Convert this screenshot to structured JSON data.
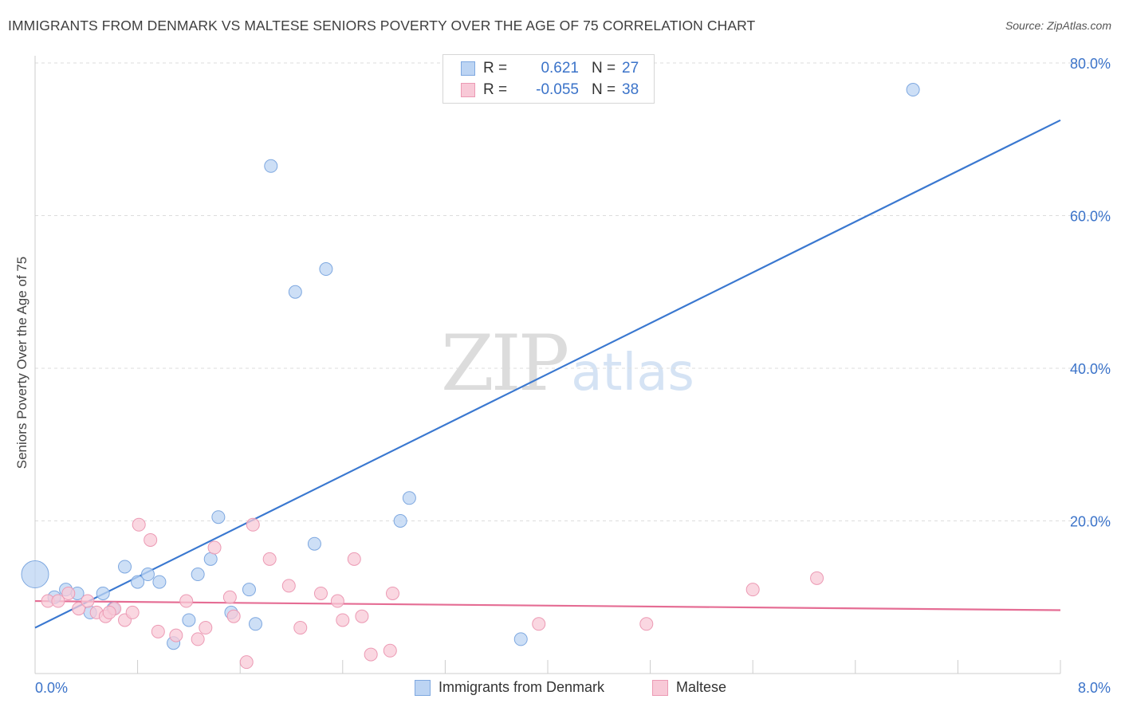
{
  "title": "IMMIGRANTS FROM DENMARK VS MALTESE SENIORS POVERTY OVER THE AGE OF 75 CORRELATION CHART",
  "source": "Source: ZipAtlas.com",
  "watermark": {
    "zip": "ZIP",
    "atlas": "atlas"
  },
  "colors": {
    "blue_fill": "#bcd4f3",
    "blue_stroke": "#7ea8e0",
    "blue_line": "#3a78d0",
    "pink_fill": "#f8c9d7",
    "pink_stroke": "#ec9ab4",
    "pink_line": "#e56d94",
    "grid": "#dddddd",
    "tick_label": "#3b73c9"
  },
  "legend": {
    "r_label": "R =",
    "n_label": "N =",
    "rows": [
      {
        "r": "0.621",
        "n": "27"
      },
      {
        "r": "-0.055",
        "n": "38"
      }
    ]
  },
  "chart_data": {
    "type": "scatter",
    "title": "IMMIGRANTS FROM DENMARK VS MALTESE SENIORS POVERTY OVER THE AGE OF 75 CORRELATION CHART",
    "xlabel": "",
    "ylabel": "Seniors Poverty Over the Age of 75",
    "xlim": [
      0,
      8
    ],
    "ylim": [
      0,
      82
    ],
    "x_tick_labels": [
      "0.0%",
      "8.0%"
    ],
    "y_ticks": [
      20,
      40,
      60,
      80
    ],
    "y_tick_labels": [
      "20.0%",
      "40.0%",
      "60.0%",
      "80.0%"
    ],
    "grid": true,
    "series": [
      {
        "name": "Immigrants from Denmark",
        "color": "#bcd4f3",
        "points": [
          [
            0.0,
            13.0
          ],
          [
            0.15,
            10.0
          ],
          [
            0.24,
            11.0
          ],
          [
            0.33,
            10.5
          ],
          [
            0.43,
            8.0
          ],
          [
            0.53,
            10.5
          ],
          [
            0.61,
            8.5
          ],
          [
            0.7,
            14.0
          ],
          [
            0.8,
            12.0
          ],
          [
            0.88,
            13.0
          ],
          [
            0.97,
            12.0
          ],
          [
            1.08,
            4.0
          ],
          [
            1.2,
            7.0
          ],
          [
            1.27,
            13.0
          ],
          [
            1.37,
            15.0
          ],
          [
            1.43,
            20.5
          ],
          [
            1.53,
            8.0
          ],
          [
            1.67,
            11.0
          ],
          [
            1.72,
            6.5
          ],
          [
            1.84,
            66.5
          ],
          [
            2.03,
            50.0
          ],
          [
            2.18,
            17.0
          ],
          [
            2.27,
            53.0
          ],
          [
            2.85,
            20.0
          ],
          [
            2.92,
            23.0
          ],
          [
            3.79,
            4.5
          ],
          [
            6.85,
            76.5
          ]
        ],
        "trend": {
          "x": [
            0.0,
            8.0
          ],
          "y": [
            6.0,
            72.5
          ]
        }
      },
      {
        "name": "Maltese",
        "color": "#f8c9d7",
        "points": [
          [
            0.1,
            9.5
          ],
          [
            0.18,
            9.5
          ],
          [
            0.26,
            10.5
          ],
          [
            0.34,
            8.5
          ],
          [
            0.41,
            9.5
          ],
          [
            0.48,
            8.0
          ],
          [
            0.55,
            7.5
          ],
          [
            0.62,
            8.5
          ],
          [
            0.7,
            7.0
          ],
          [
            0.76,
            8.0
          ],
          [
            0.81,
            19.5
          ],
          [
            0.9,
            17.5
          ],
          [
            0.96,
            5.5
          ],
          [
            1.1,
            5.0
          ],
          [
            1.18,
            9.5
          ],
          [
            1.27,
            4.5
          ],
          [
            1.33,
            6.0
          ],
          [
            1.4,
            16.5
          ],
          [
            1.52,
            10.0
          ],
          [
            1.55,
            7.5
          ],
          [
            1.65,
            1.5
          ],
          [
            1.7,
            19.5
          ],
          [
            1.83,
            15.0
          ],
          [
            1.98,
            11.5
          ],
          [
            2.07,
            6.0
          ],
          [
            2.23,
            10.5
          ],
          [
            2.36,
            9.5
          ],
          [
            2.4,
            7.0
          ],
          [
            2.49,
            15.0
          ],
          [
            2.55,
            7.5
          ],
          [
            2.62,
            2.5
          ],
          [
            2.77,
            3.0
          ],
          [
            2.79,
            10.5
          ],
          [
            3.93,
            6.5
          ],
          [
            4.77,
            6.5
          ],
          [
            5.6,
            11.0
          ],
          [
            6.1,
            12.5
          ],
          [
            0.58,
            8.0
          ]
        ],
        "trend": {
          "x": [
            0.0,
            8.0
          ],
          "y": [
            9.5,
            8.3
          ]
        }
      }
    ],
    "legend": [
      "Immigrants from Denmark",
      "Maltese"
    ],
    "legend_position": "bottom-center"
  }
}
